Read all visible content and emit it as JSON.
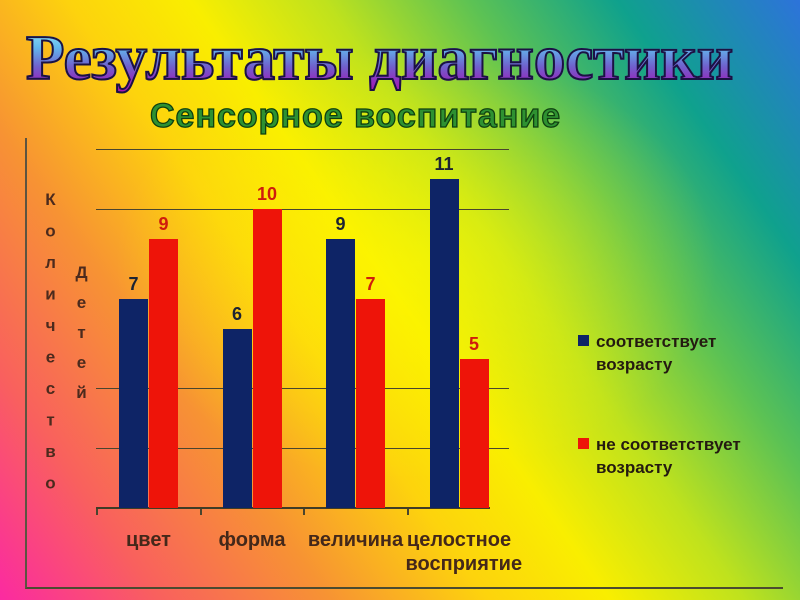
{
  "title": "Результаты диагностики",
  "subtitle": "Сенсорное воспитание",
  "colors": {
    "series_match": "#0e2466",
    "series_no_match": "#ee1409",
    "grid_line": "#4a452e",
    "axis_text": "#4c2a1d",
    "category_text": "#44281a",
    "legend_text": "#241a10",
    "title_outline": "#1b1243",
    "subtitle_fill": "#2e9131"
  },
  "chart_data": {
    "type": "bar",
    "title": "Сенсорное воспитание",
    "categories": [
      "цвет",
      "форма",
      "величина",
      "целостное восприятие"
    ],
    "series": [
      {
        "name": "соответствует возрасту",
        "values": [
          7,
          6,
          9,
          11
        ],
        "color": "#0e2466",
        "label_color": "#1c2333"
      },
      {
        "name": "не соответствует возрасту",
        "values": [
          9,
          10,
          7,
          5
        ],
        "color": "#ee1409",
        "label_color": "#cf1c0d"
      }
    ],
    "ylabel": "Количество детей",
    "ylabel_columns": [
      "Количество",
      "Детей"
    ],
    "xlabel": "",
    "ylim": [
      0,
      12
    ],
    "gridline_values": [
      12,
      10,
      4,
      2
    ],
    "grid": true,
    "data_labels": true,
    "legend_position": "right"
  }
}
